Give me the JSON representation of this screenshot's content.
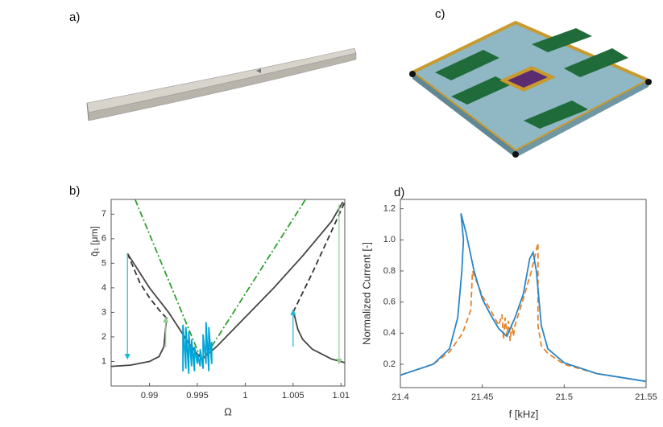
{
  "panel_labels": [
    "a)",
    "b)",
    "c)",
    "d)"
  ],
  "chart_data": [
    {
      "type": "line",
      "xlabel": "Ω",
      "ylabel": "q̄₁ [μm]",
      "xlim": [
        0.986,
        1.0104
      ],
      "ylim": [
        0,
        7.6
      ],
      "xticks": [
        0.99,
        0.995,
        1,
        1.005,
        1.01
      ],
      "yticks": [
        1,
        2,
        3,
        4,
        5,
        6,
        7
      ],
      "series": [
        {
          "color": "#2ca02c",
          "style": "dashdot",
          "x": [
            0.9885,
            0.9955,
            1.0063
          ],
          "values": [
            7.6,
            1.0,
            7.6
          ]
        },
        {
          "color": "#333333",
          "style": "dashed",
          "x": [
            0.9877,
            0.989,
            0.99,
            0.991,
            0.9917,
            null,
            1.005,
            1.007,
            1.009,
            1.0104
          ],
          "values": [
            5.4,
            4.2,
            3.6,
            3.1,
            2.8,
            null,
            3.0,
            4.6,
            6.3,
            7.5
          ]
        },
        {
          "color": "#444444",
          "style": "solid",
          "x": [
            0.986,
            0.988,
            0.99,
            0.991,
            0.9915,
            0.9918,
            null,
            0.9877,
            0.99,
            0.992,
            0.994,
            0.995,
            0.9955,
            0.997,
            1.0,
            1.003,
            1.006,
            1.009,
            1.0102,
            null,
            1.005,
            1.0055,
            1.006,
            1.007,
            1.009,
            1.0104
          ],
          "values": [
            0.8,
            0.85,
            1.0,
            1.2,
            1.6,
            2.8,
            null,
            5.4,
            4.0,
            3.0,
            1.8,
            1.3,
            1.1,
            1.6,
            2.8,
            4.0,
            5.3,
            6.7,
            7.5,
            null,
            3.1,
            2.3,
            1.9,
            1.5,
            1.1,
            0.95
          ]
        },
        {
          "color": "#00a5d8",
          "style": "solid",
          "x": [
            0.9935,
            0.9935,
            0.9938,
            0.9938,
            0.9941,
            0.9941,
            0.9944,
            0.9944,
            0.9947,
            0.9947,
            0.995,
            0.995,
            0.9953,
            0.9953,
            0.9956,
            0.9956,
            0.9959,
            0.9959,
            0.9962,
            0.9962,
            0.9965,
            0.9965
          ],
          "values": [
            0.6,
            2.5,
            0.7,
            2.4,
            0.5,
            2.2,
            0.8,
            1.9,
            0.6,
            1.6,
            0.9,
            1.3,
            0.8,
            1.5,
            0.7,
            2.1,
            0.9,
            2.6,
            0.6,
            2.4,
            0.9,
            1.8
          ]
        },
        {
          "color": "#1fb6d6",
          "style": "arrow",
          "x": [
            0.9877,
            0.9877
          ],
          "values": [
            5.4,
            1.1
          ]
        },
        {
          "color": "#1fb6d6",
          "style": "arrow",
          "x": [
            1.005,
            1.005
          ],
          "values": [
            1.6,
            3.1
          ]
        },
        {
          "color": "#8fd18f",
          "style": "arrow",
          "x": [
            0.9917,
            0.9917
          ],
          "values": [
            1.6,
            2.8
          ]
        },
        {
          "color": "#8fd18f",
          "style": "arrow",
          "x": [
            1.0098,
            1.0098
          ],
          "values": [
            7.4,
            0.9
          ]
        }
      ]
    },
    {
      "type": "line",
      "xlabel": "f [kHz]",
      "ylabel": "Normalized Current [-]",
      "xlim": [
        21.4,
        21.55
      ],
      "ylim": [
        0.05,
        1.26
      ],
      "xticks": [
        21.4,
        21.45,
        21.5,
        21.55
      ],
      "yticks": [
        0.2,
        0.4,
        0.6,
        0.8,
        {
          "value": 1,
          "label": "1.0"
        },
        1.2
      ],
      "series": [
        {
          "color": "#e8832a",
          "style": "dashed",
          "x": [
            21.4,
            21.42,
            21.43,
            21.438,
            21.443,
            21.444,
            21.45,
            21.455,
            21.46,
            21.462,
            21.463,
            21.464,
            21.465,
            21.466,
            21.467,
            21.468,
            21.469,
            21.47,
            21.475,
            21.48,
            21.484,
            21.484,
            21.486,
            21.49,
            21.5,
            21.52,
            21.55
          ],
          "values": [
            0.13,
            0.2,
            0.28,
            0.4,
            0.55,
            0.8,
            0.64,
            0.55,
            0.45,
            0.52,
            0.36,
            0.5,
            0.38,
            0.48,
            0.35,
            0.46,
            0.38,
            0.45,
            0.62,
            0.8,
            0.98,
            0.45,
            0.32,
            0.27,
            0.2,
            0.14,
            0.09
          ]
        },
        {
          "color": "#2a86c8",
          "style": "solid",
          "x": [
            21.4,
            21.42,
            21.43,
            21.435,
            21.4375,
            21.4385,
            21.437,
            21.44,
            21.445,
            21.45,
            21.455,
            21.46,
            21.465,
            21.47,
            21.475,
            21.479,
            21.481,
            21.483,
            21.486,
            21.49,
            21.5,
            21.52,
            21.55
          ],
          "values": [
            0.13,
            0.2,
            0.3,
            0.5,
            0.8,
            1.0,
            1.17,
            1.05,
            0.8,
            0.62,
            0.52,
            0.43,
            0.38,
            0.5,
            0.65,
            0.88,
            0.92,
            0.8,
            0.45,
            0.3,
            0.21,
            0.14,
            0.09
          ]
        }
      ]
    }
  ]
}
